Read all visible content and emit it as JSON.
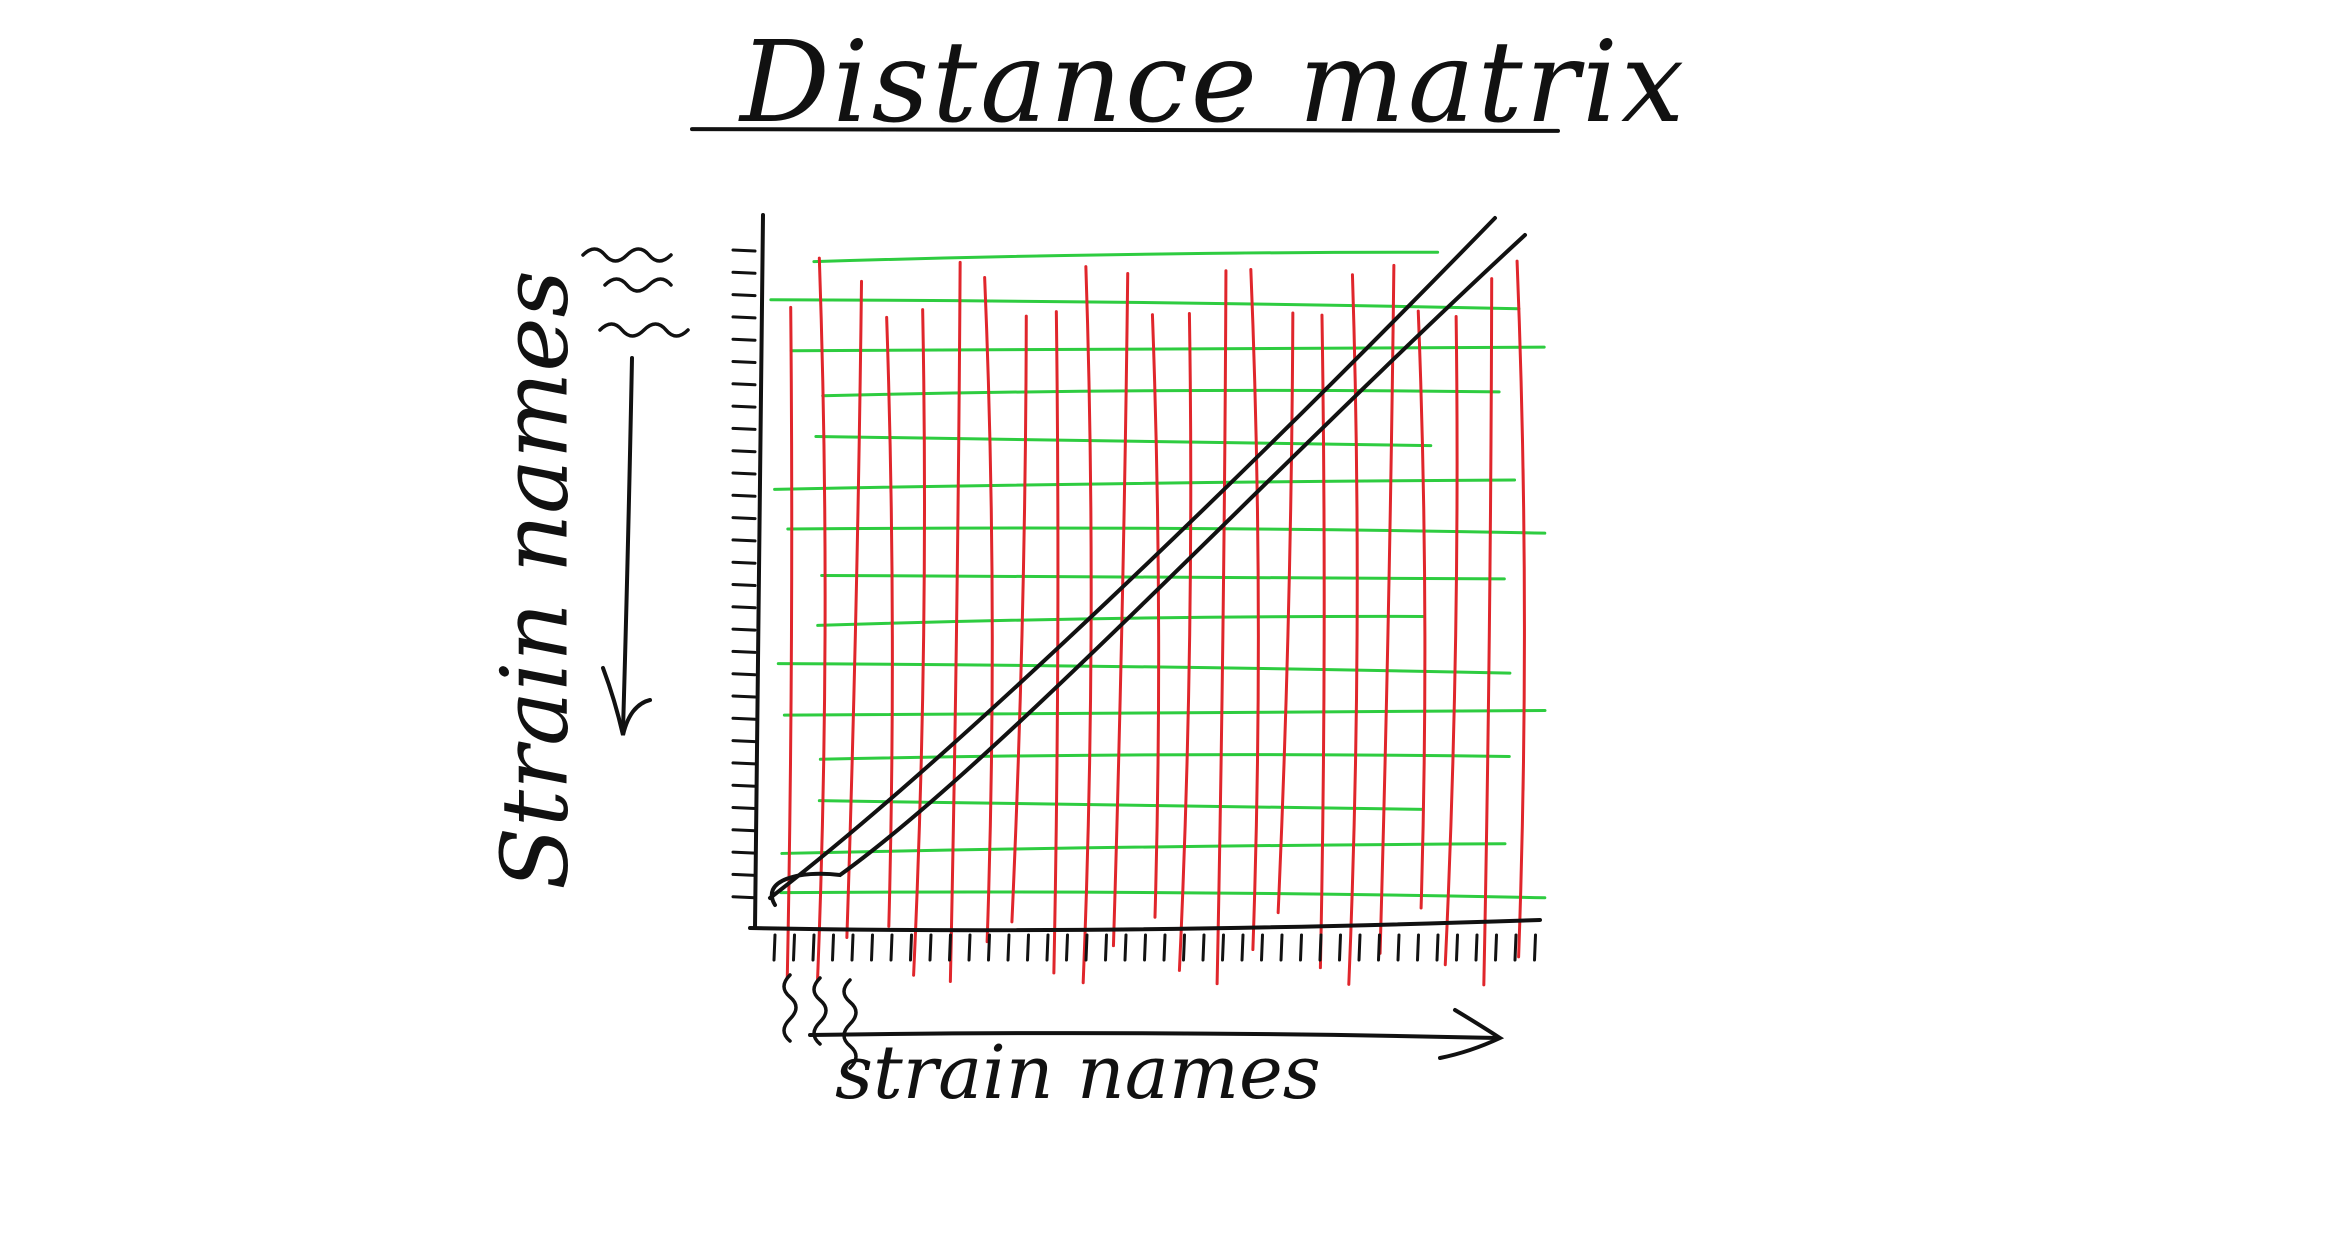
{
  "title": "Distance matrix",
  "x_axis_label": "strain names",
  "y_axis_label": "Strain names",
  "colors": {
    "ink": "#111111",
    "row_lines": "#2ecc40",
    "column_lines": "#e0262c"
  },
  "grid": {
    "rows": 15,
    "columns": 23
  }
}
